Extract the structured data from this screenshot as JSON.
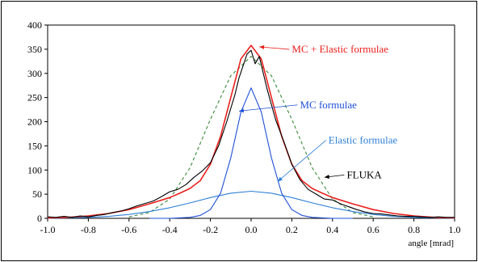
{
  "chart_data": {
    "type": "line",
    "title": "",
    "xlabel": "angle [mrad]",
    "ylabel": "",
    "xlim": [
      -1.0,
      1.0
    ],
    "ylim": [
      0,
      400
    ],
    "x_ticks": [
      -1.0,
      -0.8,
      -0.6,
      -0.4,
      -0.2,
      0.0,
      0.2,
      0.4,
      0.6,
      0.8,
      1.0
    ],
    "x_tick_labels": [
      "-1.0",
      "-0.8",
      "-0.6",
      "-0.4",
      "-0.2",
      "0.0",
      "0.2",
      "0.4",
      "0.6",
      "0.8",
      "1.0"
    ],
    "y_ticks": [
      0,
      50,
      100,
      150,
      200,
      250,
      300,
      350,
      400
    ],
    "y_tick_labels": [
      "0",
      "50",
      "100",
      "150",
      "200",
      "250",
      "300",
      "350",
      "400"
    ],
    "grid": false,
    "legend": "none",
    "series": [
      {
        "name": "FLUKA",
        "color": "#000000",
        "style": "solid",
        "x": [
          -1.0,
          -0.96,
          -0.92,
          -0.88,
          -0.84,
          -0.8,
          -0.76,
          -0.72,
          -0.68,
          -0.64,
          -0.6,
          -0.56,
          -0.52,
          -0.48,
          -0.44,
          -0.4,
          -0.36,
          -0.32,
          -0.28,
          -0.24,
          -0.2,
          -0.16,
          -0.12,
          -0.08,
          -0.06,
          -0.04,
          -0.02,
          0.0,
          0.02,
          0.04,
          0.06,
          0.08,
          0.12,
          0.16,
          0.2,
          0.24,
          0.28,
          0.32,
          0.36,
          0.4,
          0.44,
          0.48,
          0.52,
          0.56,
          0.6,
          0.64,
          0.68,
          0.72,
          0.76,
          0.8,
          0.84,
          0.88,
          0.92,
          0.96,
          1.0
        ],
        "y": [
          3,
          2,
          4,
          2,
          5,
          3,
          6,
          8,
          12,
          15,
          20,
          26,
          31,
          36,
          45,
          55,
          60,
          70,
          85,
          98,
          115,
          150,
          200,
          255,
          290,
          315,
          340,
          348,
          320,
          335,
          300,
          265,
          205,
          160,
          112,
          80,
          60,
          50,
          40,
          38,
          30,
          24,
          18,
          13,
          10,
          9,
          7,
          5,
          4,
          4,
          3,
          2,
          3,
          2,
          2
        ]
      },
      {
        "name": "MC + Elastic formulae",
        "color": "#e8211d",
        "style": "solid",
        "x": [
          -1.0,
          -0.9,
          -0.8,
          -0.7,
          -0.6,
          -0.5,
          -0.4,
          -0.35,
          -0.3,
          -0.25,
          -0.2,
          -0.15,
          -0.1,
          -0.05,
          0.0,
          0.05,
          0.1,
          0.15,
          0.2,
          0.25,
          0.3,
          0.35,
          0.4,
          0.5,
          0.6,
          0.7,
          0.8,
          0.9,
          1.0
        ],
        "y": [
          1,
          2,
          5,
          10,
          18,
          30,
          43,
          52,
          62,
          78,
          112,
          170,
          250,
          330,
          358,
          330,
          250,
          170,
          112,
          78,
          62,
          52,
          43,
          30,
          18,
          10,
          5,
          2,
          1
        ]
      },
      {
        "name": "MC formulae",
        "color": "#1f4fd6",
        "style": "solid",
        "x": [
          -0.5,
          -0.4,
          -0.3,
          -0.25,
          -0.2,
          -0.15,
          -0.1,
          -0.05,
          0.0,
          0.05,
          0.1,
          0.15,
          0.2,
          0.25,
          0.3,
          0.4,
          0.5
        ],
        "y": [
          0,
          0,
          2,
          6,
          18,
          52,
          125,
          220,
          270,
          220,
          125,
          52,
          18,
          6,
          2,
          0,
          0
        ]
      },
      {
        "name": "Elastic formulae",
        "color": "#2d7fd6",
        "style": "solid",
        "x": [
          -1.0,
          -0.9,
          -0.8,
          -0.7,
          -0.6,
          -0.5,
          -0.4,
          -0.3,
          -0.2,
          -0.1,
          0.0,
          0.1,
          0.2,
          0.3,
          0.4,
          0.5,
          0.6,
          0.7,
          0.8,
          0.9,
          1.0
        ],
        "y": [
          0,
          1,
          2,
          4,
          8,
          14,
          22,
          32,
          43,
          52,
          56,
          52,
          43,
          32,
          22,
          14,
          8,
          4,
          2,
          1,
          0
        ]
      },
      {
        "name": "",
        "color": "#3a8a3a",
        "style": "dashed",
        "x": [
          -0.6,
          -0.5,
          -0.4,
          -0.3,
          -0.2,
          -0.1,
          0.0,
          0.1,
          0.2,
          0.3,
          0.4,
          0.5,
          0.6
        ],
        "y": [
          3,
          12,
          40,
          105,
          205,
          295,
          335,
          295,
          205,
          105,
          40,
          12,
          3
        ]
      }
    ],
    "annotations": [
      {
        "text": "MC + Elastic formulae",
        "color": "#e8211d",
        "text_x": 0.2,
        "text_y": 343,
        "arrow_to_x": 0.04,
        "arrow_to_y": 355
      },
      {
        "text": "MC formulae",
        "color": "#1f4fd6",
        "text_x": 0.24,
        "text_y": 228,
        "arrow_to_x": -0.06,
        "arrow_to_y": 222
      },
      {
        "text": "Elastic formulae",
        "color": "#2d7fd6",
        "text_x": 0.38,
        "text_y": 155,
        "arrow_to_x": 0.13,
        "arrow_to_y": 76
      },
      {
        "text": "FLUKA",
        "color": "#000000",
        "text_x": 0.47,
        "text_y": 83,
        "arrow_to_x": 0.36,
        "arrow_to_y": 85
      }
    ]
  }
}
